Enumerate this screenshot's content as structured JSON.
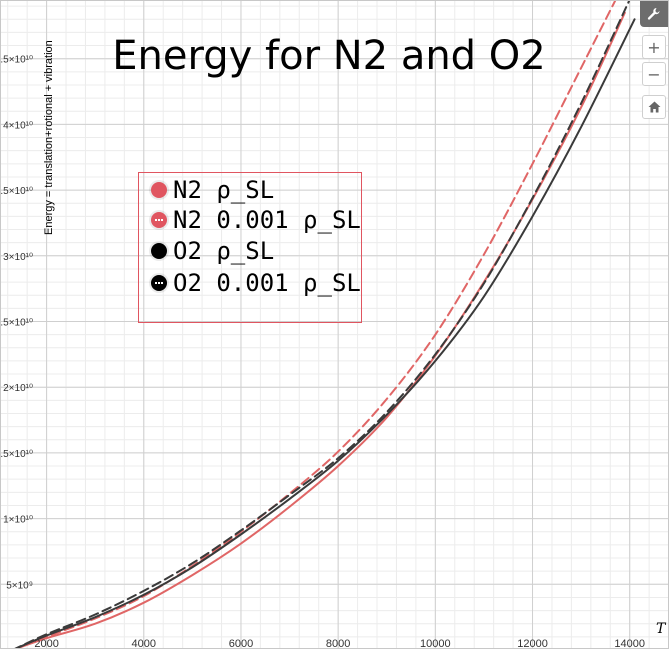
{
  "toolbar": {
    "wrench_icon": "wrench-icon",
    "zoom_in_label": "+",
    "zoom_out_label": "−",
    "home_icon": "home-icon"
  },
  "chart_data": {
    "type": "line",
    "title": "Energy for N2 and O2",
    "xlabel": "T",
    "ylabel": "Energy = translation+rotional + vibration",
    "xlim": [
      1000,
      14500
    ],
    "ylim": [
      0,
      50000000000
    ],
    "grid": true,
    "legend_position": "upper-left",
    "x_ticks": [
      2000,
      4000,
      6000,
      8000,
      10000,
      12000,
      14000
    ],
    "x_tick_labels": [
      "2000",
      "4000",
      "6000",
      "8000",
      "10000",
      "12000",
      "14000"
    ],
    "y_ticks": [
      5000000000,
      10000000000,
      15000000000,
      20000000000,
      25000000000,
      30000000000,
      35000000000,
      40000000000,
      45000000000
    ],
    "y_tick_labels": [
      "5×10⁹",
      "1×10¹⁰",
      "1.5×10¹⁰",
      "2×10¹⁰",
      "2.5×10¹⁰",
      "3×10¹⁰",
      "3.5×10¹⁰",
      "4×10¹⁰",
      "4.5×10¹⁰"
    ],
    "series": [
      {
        "name": "N2 ρ_SL",
        "color": "#e06666",
        "dash": "solid",
        "x": [
          1300,
          2000,
          3000,
          4000,
          5000,
          6000,
          7000,
          8000,
          9000,
          10000,
          11000,
          12000,
          13000,
          13900
        ],
        "y": [
          0,
          900000000,
          2000000000,
          3600000000,
          5700000000,
          8100000000,
          10900000000,
          14000000000,
          17700000000,
          22400000000,
          28000000000,
          34300000000,
          41300000000,
          48500000000
        ]
      },
      {
        "name": "N2 0.001 ρ_SL",
        "color": "#e06666",
        "dash": "dashed",
        "x": [
          1300,
          2000,
          3000,
          4000,
          5000,
          6000,
          7000,
          8000,
          9000,
          10000,
          11000,
          12000,
          13000,
          13850
        ],
        "y": [
          0,
          1000000000,
          2400000000,
          4100000000,
          6400000000,
          9000000000,
          11900000000,
          15100000000,
          19100000000,
          24000000000,
          30100000000,
          37000000000,
          44300000000,
          50500000000
        ]
      },
      {
        "name": "O2 ρ_SL",
        "color": "#3a3a3a",
        "dash": "solid",
        "x": [
          1300,
          2000,
          3000,
          4000,
          5000,
          6000,
          7000,
          8000,
          9000,
          10000,
          11000,
          12000,
          13000,
          14100
        ],
        "y": [
          0,
          1100000000,
          2500000000,
          4200000000,
          6300000000,
          8800000000,
          11500000000,
          14400000000,
          17900000000,
          22000000000,
          26900000000,
          33000000000,
          39800000000,
          48000000000
        ]
      },
      {
        "name": "O2 0.001 ρ_SL",
        "color": "#3a3a3a",
        "dash": "dashed",
        "x": [
          1300,
          2000,
          3000,
          4000,
          5000,
          6000,
          7000,
          8000,
          9000,
          10000,
          11000,
          12000,
          13000,
          14000
        ],
        "y": [
          0,
          1200000000,
          2700000000,
          4500000000,
          6600000000,
          9100000000,
          11800000000,
          14600000000,
          18100000000,
          22500000000,
          27900000000,
          34400000000,
          41600000000,
          49500000000
        ]
      }
    ]
  }
}
